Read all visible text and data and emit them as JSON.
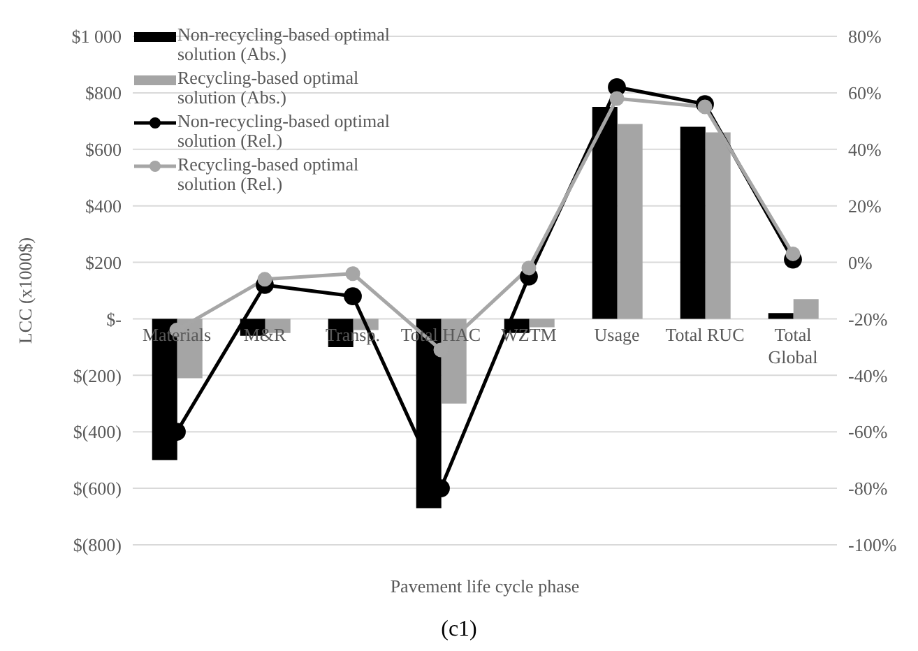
{
  "chart_data": {
    "type": "bar",
    "xlabel": "Pavement life cycle phase",
    "ylabel": "LCC (x1000$)",
    "categories": [
      "Materials",
      "M&R",
      "Transp.",
      "Total HAC",
      "WZTM",
      "Usage",
      "Total RUC",
      "Total Global"
    ],
    "series": [
      {
        "name": "Non-recycling-based optimal solution (Abs.)",
        "color": "#000000",
        "values": [
          -500,
          -60,
          -100,
          -670,
          -50,
          750,
          680,
          20
        ]
      },
      {
        "name": "Recycling-based optimal solution (Abs.)",
        "color": "#a5a5a5",
        "values": [
          -210,
          -50,
          -40,
          -300,
          -30,
          690,
          660,
          70
        ]
      },
      {
        "name": "Non-recycling-based optimal solution (Rel.)",
        "type": "line",
        "axis": "y2",
        "color": "#000000",
        "values": [
          -60,
          -8,
          -12,
          -80,
          -5,
          62,
          56,
          1
        ]
      },
      {
        "name": "Recycling-based optimal solution (Rel.)",
        "type": "line",
        "axis": "y2",
        "color": "#a6a6a6",
        "values": [
          -24,
          -6,
          -4,
          -31,
          -2,
          58,
          55,
          3
        ]
      }
    ],
    "ylim": [
      -800,
      1000
    ],
    "yticks": [
      {
        "value": 1000,
        "label": "$1 000"
      },
      {
        "value": 800,
        "label": "$800"
      },
      {
        "value": 600,
        "label": "$600"
      },
      {
        "value": 400,
        "label": "$400"
      },
      {
        "value": 200,
        "label": "$200"
      },
      {
        "value": 0,
        "label": "$-"
      },
      {
        "value": -200,
        "label": "$(200)"
      },
      {
        "value": -400,
        "label": "$(400)"
      },
      {
        "value": -600,
        "label": "$(600)"
      },
      {
        "value": -800,
        "label": "$(800)"
      }
    ],
    "y2lim": [
      -100,
      80
    ],
    "y2ticks": [
      {
        "value": 80,
        "label": "80%"
      },
      {
        "value": 60,
        "label": "60%"
      },
      {
        "value": 40,
        "label": "40%"
      },
      {
        "value": 20,
        "label": "20%"
      },
      {
        "value": 0,
        "label": "0%"
      },
      {
        "value": -20,
        "label": "-20%"
      },
      {
        "value": -40,
        "label": "-40%"
      },
      {
        "value": -60,
        "label": "-60%"
      },
      {
        "value": -80,
        "label": "-80%"
      },
      {
        "value": -100,
        "label": "-100%"
      }
    ],
    "grid": "y",
    "legend": "top left",
    "marker": "circle",
    "line_style": "solid",
    "annotations": [
      "(c1)"
    ]
  }
}
